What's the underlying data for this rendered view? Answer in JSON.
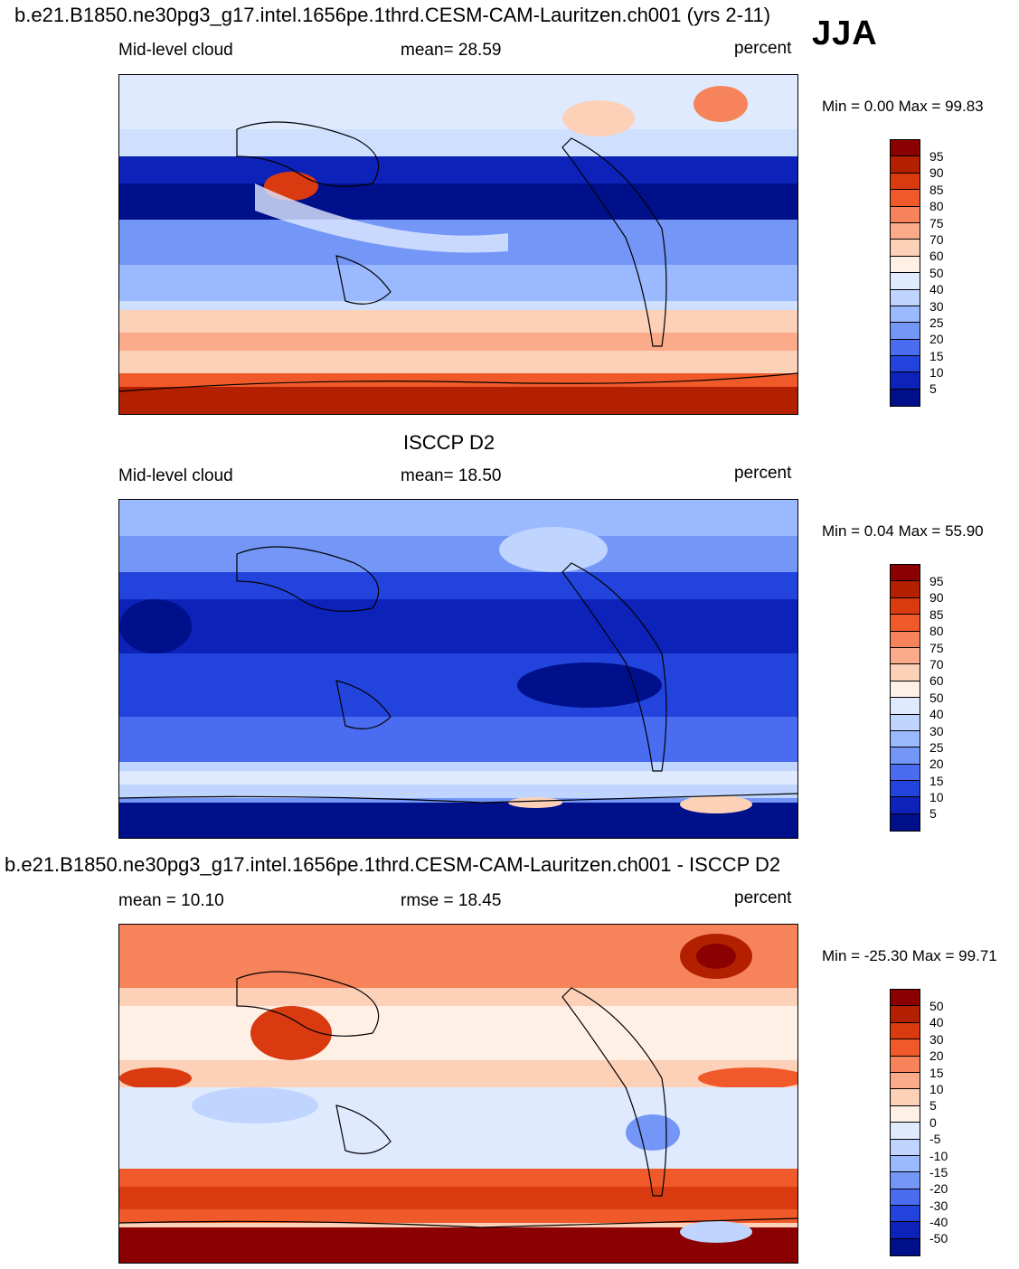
{
  "header": {
    "model_title": "b.e21.B1850.ne30pg3_g17.intel.1656pe.1thrd.CESM-CAM-Lauritzen.ch001 (yrs 2-11)",
    "season": "JJA"
  },
  "panels": [
    {
      "title": "",
      "left_label": "Mid-level cloud",
      "center_label": "mean=  28.59",
      "units": "percent",
      "minmax": "Min =   0.00 Max =  99.83",
      "colorbar_labels": [
        "95",
        "90",
        "85",
        "80",
        "75",
        "70",
        "60",
        "50",
        "40",
        "30",
        "25",
        "20",
        "15",
        "10",
        "5"
      ],
      "colorbar_colors": [
        "#8b0000",
        "#b22000",
        "#d93a10",
        "#f05a2a",
        "#f7835a",
        "#fbab8a",
        "#fdd0b8",
        "#fff0e6",
        "#dfeaff",
        "#bfd4ff",
        "#9ab9ff",
        "#7396f7",
        "#4a6cf0",
        "#2244dd",
        "#0d22b8",
        "#00108a"
      ]
    },
    {
      "title": "ISCCP D2",
      "left_label": "Mid-level cloud",
      "center_label": "mean=  18.50",
      "units": "percent",
      "minmax": "Min =   0.04 Max =  55.90",
      "colorbar_labels": [
        "95",
        "90",
        "85",
        "80",
        "75",
        "70",
        "60",
        "50",
        "40",
        "30",
        "25",
        "20",
        "15",
        "10",
        "5"
      ],
      "colorbar_colors": [
        "#8b0000",
        "#b22000",
        "#d93a10",
        "#f05a2a",
        "#f7835a",
        "#fbab8a",
        "#fdd0b8",
        "#fff0e6",
        "#dfeaff",
        "#bfd4ff",
        "#9ab9ff",
        "#7396f7",
        "#4a6cf0",
        "#2244dd",
        "#0d22b8",
        "#00108a"
      ]
    },
    {
      "title": "b.e21.B1850.ne30pg3_g17.intel.1656pe.1thrd.CESM-CAM-Lauritzen.ch001 - ISCCP D2",
      "left_label": "mean =  10.10",
      "center_label": "rmse =  18.45",
      "units": "percent",
      "minmax": "Min = -25.30 Max =  99.71",
      "colorbar_labels": [
        "50",
        "40",
        "30",
        "20",
        "15",
        "10",
        "5",
        "0",
        "-5",
        "-10",
        "-15",
        "-20",
        "-30",
        "-40",
        "-50"
      ],
      "colorbar_colors": [
        "#8b0000",
        "#b22000",
        "#d93a10",
        "#f05a2a",
        "#f7835a",
        "#fbab8a",
        "#fdd0b8",
        "#fff0e6",
        "#dfeaff",
        "#bfd4ff",
        "#9ab9ff",
        "#7396f7",
        "#4a6cf0",
        "#2244dd",
        "#0d22b8",
        "#00108a"
      ]
    }
  ]
}
